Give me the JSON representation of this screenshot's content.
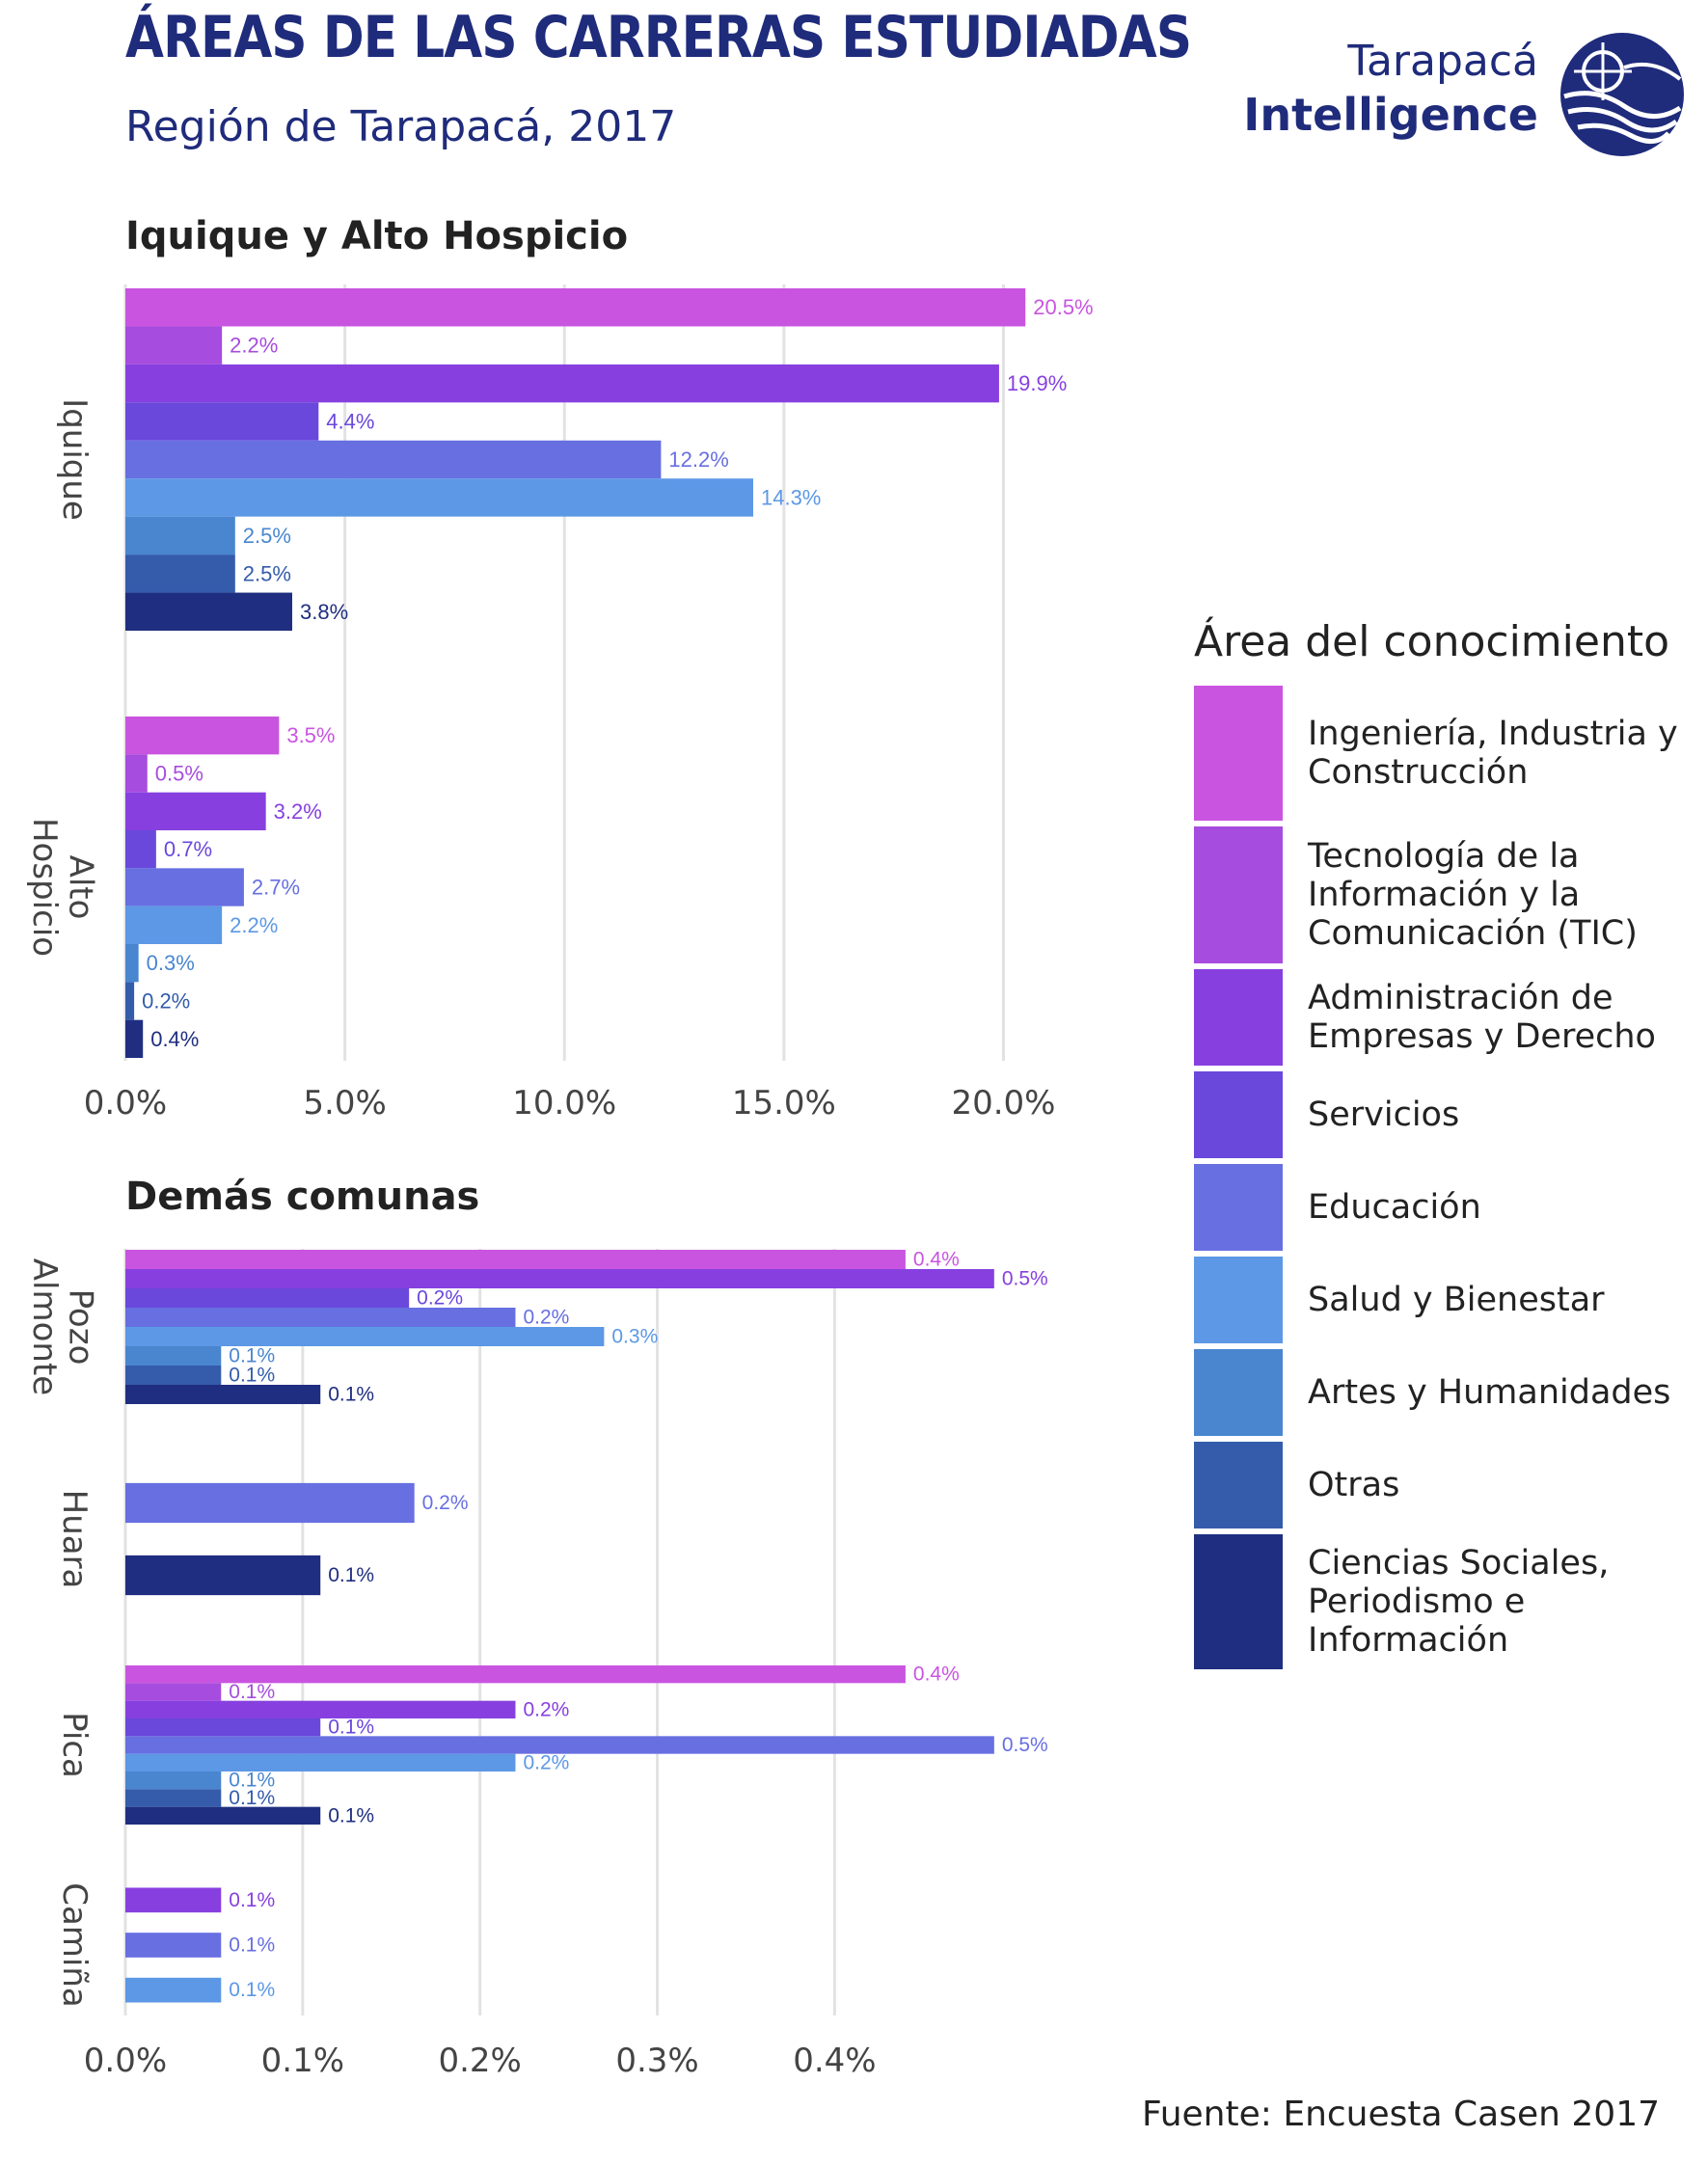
{
  "header": {
    "title": "ÁREAS DE LAS CARRERAS ESTUDIADAS",
    "subtitle": "Región de Tarapacá, 2017"
  },
  "brand": {
    "line1": "Tarapacá",
    "line2": "Intelligence",
    "color": "#1f2b7b"
  },
  "legend": {
    "title": "Área del conocimiento",
    "items": [
      {
        "label": "Ingeniería, Industria y Construcción",
        "color": "#c954e0"
      },
      {
        "label": "Tecnología de la Información y la Comunicación (TIC)",
        "color": "#a64cde"
      },
      {
        "label": "Administración de Empresas y Derecho",
        "color": "#8740df"
      },
      {
        "label": "Servicios",
        "color": "#6a48dc"
      },
      {
        "label": "Educación",
        "color": "#676fe1"
      },
      {
        "label": "Salud y Bienestar",
        "color": "#5c98e6"
      },
      {
        "label": "Artes y Humanidades",
        "color": "#4986cf"
      },
      {
        "label": "Otras",
        "color": "#345cab"
      },
      {
        "label": "Ciencias Sociales, Periodismo e Información",
        "color": "#1f2e80"
      }
    ]
  },
  "source": "Fuente: Encuesta Casen 2017",
  "chart_data": [
    {
      "type": "bar",
      "orientation": "horizontal",
      "title": "Iquique y Alto Hospicio",
      "xlim": [
        0,
        0.21
      ],
      "xticks": [
        0,
        0.05,
        0.1,
        0.15,
        0.2
      ],
      "xtick_labels": [
        "0.0%",
        "5.0%",
        "10.0%",
        "15.0%",
        "20.0%"
      ],
      "grid": true,
      "groups": [
        {
          "name": "Iquique",
          "bars": [
            {
              "area": 0,
              "value": 0.205,
              "label": "20.5%"
            },
            {
              "area": 1,
              "value": 0.022,
              "label": "2.2%"
            },
            {
              "area": 2,
              "value": 0.199,
              "label": "19.9%"
            },
            {
              "area": 3,
              "value": 0.044,
              "label": "4.4%"
            },
            {
              "area": 4,
              "value": 0.122,
              "label": "12.2%"
            },
            {
              "area": 5,
              "value": 0.143,
              "label": "14.3%"
            },
            {
              "area": 6,
              "value": 0.025,
              "label": "2.5%"
            },
            {
              "area": 7,
              "value": 0.025,
              "label": "2.5%"
            },
            {
              "area": 8,
              "value": 0.038,
              "label": "3.8%"
            }
          ]
        },
        {
          "name": "Alto Hospicio",
          "bars": [
            {
              "area": 0,
              "value": 0.035,
              "label": "3.5%"
            },
            {
              "area": 1,
              "value": 0.005,
              "label": "0.5%"
            },
            {
              "area": 2,
              "value": 0.032,
              "label": "3.2%"
            },
            {
              "area": 3,
              "value": 0.007,
              "label": "0.7%"
            },
            {
              "area": 4,
              "value": 0.027,
              "label": "2.7%"
            },
            {
              "area": 5,
              "value": 0.022,
              "label": "2.2%"
            },
            {
              "area": 6,
              "value": 0.003,
              "label": "0.3%"
            },
            {
              "area": 7,
              "value": 0.002,
              "label": "0.2%"
            },
            {
              "area": 8,
              "value": 0.004,
              "label": "0.4%"
            }
          ]
        }
      ]
    },
    {
      "type": "bar",
      "orientation": "horizontal",
      "title": "Demás comunas",
      "xlim": [
        0,
        0.0052
      ],
      "xticks": [
        0,
        0.001,
        0.002,
        0.003,
        0.004
      ],
      "xtick_labels": [
        "0.0%",
        "0.1%",
        "0.2%",
        "0.3%",
        "0.4%"
      ],
      "grid": true,
      "groups": [
        {
          "name": "Pozo Almonte",
          "bars": [
            {
              "area": 0,
              "value": 0.0044,
              "label": "0.4%"
            },
            {
              "area": 2,
              "value": 0.0049,
              "label": "0.5%"
            },
            {
              "area": 3,
              "value": 0.0016,
              "label": "0.2%"
            },
            {
              "area": 4,
              "value": 0.0022,
              "label": "0.2%"
            },
            {
              "area": 5,
              "value": 0.0027,
              "label": "0.3%"
            },
            {
              "area": 6,
              "value": 0.00054,
              "label": "0.1%"
            },
            {
              "area": 7,
              "value": 0.00054,
              "label": "0.1%"
            },
            {
              "area": 8,
              "value": 0.0011,
              "label": "0.1%"
            }
          ]
        },
        {
          "name": "Huara",
          "bars": [
            {
              "area": 4,
              "value": 0.00163,
              "label": "0.2%"
            },
            {
              "area": 8,
              "value": 0.0011,
              "label": "0.1%"
            }
          ]
        },
        {
          "name": "Pica",
          "bars": [
            {
              "area": 0,
              "value": 0.0044,
              "label": "0.4%"
            },
            {
              "area": 1,
              "value": 0.00054,
              "label": "0.1%"
            },
            {
              "area": 2,
              "value": 0.0022,
              "label": "0.2%"
            },
            {
              "area": 3,
              "value": 0.0011,
              "label": "0.1%"
            },
            {
              "area": 4,
              "value": 0.0049,
              "label": "0.5%"
            },
            {
              "area": 5,
              "value": 0.0022,
              "label": "0.2%"
            },
            {
              "area": 6,
              "value": 0.00054,
              "label": "0.1%"
            },
            {
              "area": 7,
              "value": 0.00054,
              "label": "0.1%"
            },
            {
              "area": 8,
              "value": 0.0011,
              "label": "0.1%"
            }
          ]
        },
        {
          "name": "Camiña",
          "bars": [
            {
              "area": 2,
              "value": 0.00054,
              "label": "0.1%"
            },
            {
              "area": 4,
              "value": 0.00054,
              "label": "0.1%"
            },
            {
              "area": 5,
              "value": 0.00054,
              "label": "0.1%"
            }
          ]
        }
      ]
    }
  ]
}
